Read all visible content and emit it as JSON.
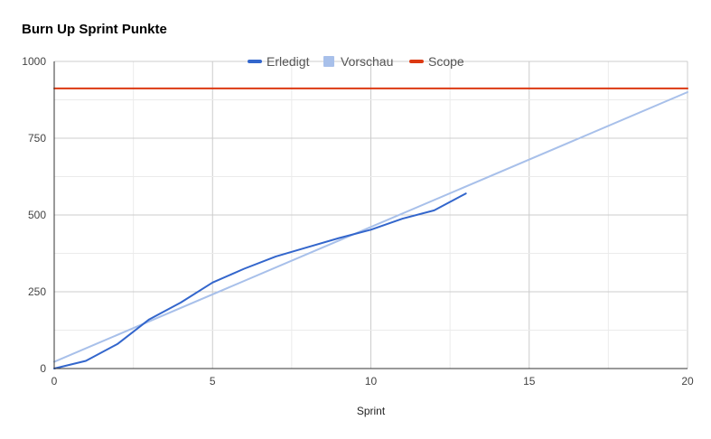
{
  "chart_data": {
    "type": "line",
    "title": "Burn Up Sprint Punkte",
    "xlabel": "Sprint",
    "ylabel": "",
    "xlim": [
      0,
      20
    ],
    "ylim": [
      0,
      1000
    ],
    "x_ticks": [
      "0",
      "5",
      "10",
      "15",
      "20"
    ],
    "y_ticks": [
      "0",
      "250",
      "500",
      "750",
      "1000"
    ],
    "grid": true,
    "legend_position": "top",
    "series": [
      {
        "name": "Erledigt",
        "color": "#3366cc",
        "x": [
          0,
          1,
          2,
          3,
          4,
          5,
          6,
          7,
          8,
          9,
          10,
          11,
          12,
          13
        ],
        "y": [
          0,
          25,
          80,
          160,
          215,
          280,
          325,
          365,
          395,
          425,
          452,
          488,
          515,
          570
        ]
      },
      {
        "name": "Vorschau",
        "color": "#a8c0ea",
        "x": [
          0,
          20
        ],
        "y": [
          22,
          900
        ]
      },
      {
        "name": "Scope",
        "color": "#dc3912",
        "x": [
          0,
          20
        ],
        "y": [
          912,
          912
        ]
      }
    ]
  }
}
